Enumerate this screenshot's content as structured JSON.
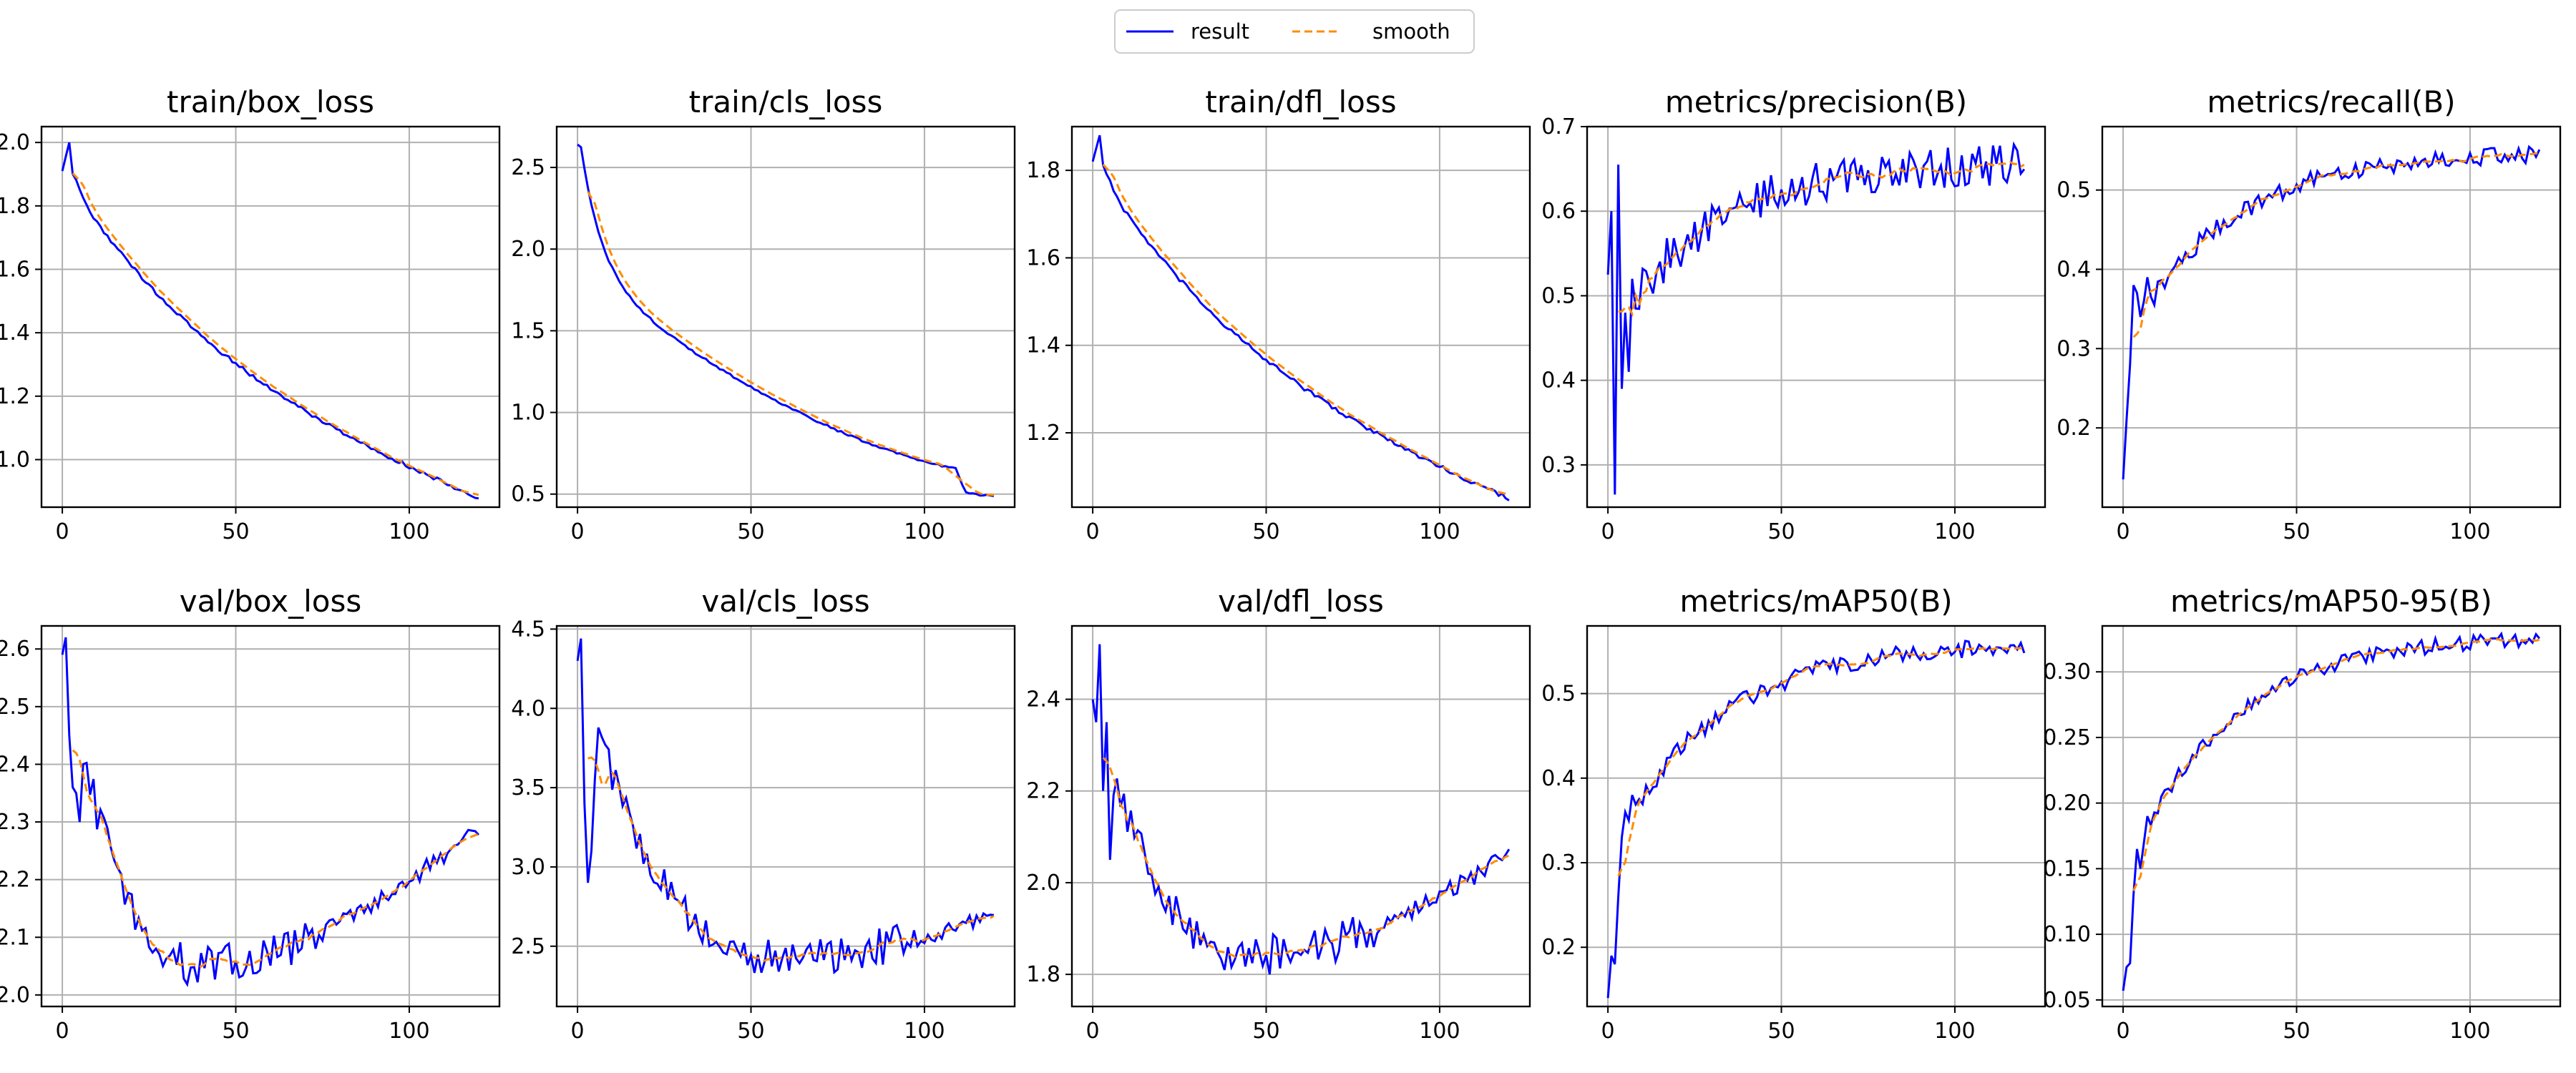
{
  "legend": {
    "entries": [
      {
        "label": "result",
        "color": "#0000ff",
        "dash": false
      },
      {
        "label": "smooth",
        "color": "#ff8c00",
        "dash": true
      }
    ],
    "placement": "top-center"
  },
  "grid": true,
  "chart_data": [
    {
      "type": "line",
      "title": "train/box_loss",
      "xlim": [
        -6,
        126
      ],
      "ylim": [
        0.85,
        2.05
      ],
      "xticks": [
        0,
        50,
        100
      ],
      "yticks": [
        1.0,
        1.2,
        1.4,
        1.6,
        1.8,
        2.0
      ],
      "ytick_decimals": 1,
      "kind": "decay",
      "y_start": 1.91,
      "y_end": 0.88,
      "peak": 2.0,
      "peak_at": 2,
      "noise": 0.006,
      "last_drop": 0,
      "knee": 0,
      "smooth_offset": 0.025
    },
    {
      "type": "line",
      "title": "train/cls_loss",
      "xlim": [
        -6,
        126
      ],
      "ylim": [
        0.42,
        2.75
      ],
      "xticks": [
        0,
        50,
        100
      ],
      "yticks": [
        0.5,
        1.0,
        1.5,
        2.0,
        2.5
      ],
      "ytick_decimals": 1,
      "kind": "decay",
      "y_start": 2.64,
      "y_end": 0.63,
      "peak": 2.64,
      "peak_at": 0,
      "noise": 0.006,
      "last_drop": 0.14,
      "knee": 1,
      "smooth_offset": 0.05
    },
    {
      "type": "line",
      "title": "train/dfl_loss",
      "xlim": [
        -6,
        126
      ],
      "ylim": [
        1.03,
        1.9
      ],
      "xticks": [
        0,
        50,
        100
      ],
      "yticks": [
        1.2,
        1.4,
        1.6,
        1.8
      ],
      "ytick_decimals": 1,
      "kind": "decay",
      "y_start": 1.82,
      "y_end": 1.05,
      "peak": 1.88,
      "peak_at": 2,
      "noise": 0.005,
      "last_drop": 0,
      "knee": 0,
      "smooth_offset": 0.02
    },
    {
      "type": "line",
      "title": "metrics/precision(B)",
      "xlim": [
        -6,
        126
      ],
      "ylim": [
        0.25,
        0.7
      ],
      "xticks": [
        0,
        50,
        100
      ],
      "yticks": [
        0.3,
        0.4,
        0.5,
        0.6,
        0.7
      ],
      "ytick_decimals": 1,
      "kind": "rise",
      "y_start": 0.45,
      "y_end": 0.655,
      "noise": 0.025,
      "early": [
        0.525,
        0.6,
        0.265,
        0.655,
        0.39,
        0.48,
        0.41,
        0.52
      ]
    },
    {
      "type": "line",
      "title": "metrics/recall(B)",
      "xlim": [
        -6,
        126
      ],
      "ylim": [
        0.1,
        0.58
      ],
      "xticks": [
        0,
        50,
        100
      ],
      "yticks": [
        0.2,
        0.3,
        0.4,
        0.5
      ],
      "ytick_decimals": 1,
      "kind": "rise",
      "y_start": 0.3,
      "y_end": 0.545,
      "noise": 0.012,
      "early": [
        0.135,
        0.21,
        0.28,
        0.38,
        0.37,
        0.34,
        0.36,
        0.39
      ]
    },
    {
      "type": "line",
      "title": "val/box_loss",
      "xlim": [
        -6,
        126
      ],
      "ylim": [
        1.98,
        2.64
      ],
      "xticks": [
        0,
        50,
        100
      ],
      "yticks": [
        2.0,
        2.1,
        2.2,
        2.3,
        2.4,
        2.5,
        2.6
      ],
      "ytick_decimals": 1,
      "kind": "ubowl",
      "y_start": 2.6,
      "y_min": 2.05,
      "min_at": 42,
      "y_end": 2.29,
      "noise": 0.035,
      "early": [
        2.59,
        2.62,
        2.45,
        2.36,
        2.35,
        2.3
      ]
    },
    {
      "type": "line",
      "title": "val/cls_loss",
      "xlim": [
        -6,
        126
      ],
      "ylim": [
        2.12,
        4.52
      ],
      "xticks": [
        0,
        50,
        100
      ],
      "yticks": [
        2.5,
        3.0,
        3.5,
        4.0,
        4.5
      ],
      "ytick_decimals": 1,
      "kind": "ubowl",
      "y_start": 4.3,
      "y_min": 2.42,
      "min_at": 60,
      "y_end": 2.7,
      "noise": 0.12,
      "early": [
        4.3,
        4.44,
        3.4,
        2.9,
        3.1,
        3.55
      ]
    },
    {
      "type": "line",
      "title": "val/dfl_loss",
      "xlim": [
        -6,
        126
      ],
      "ylim": [
        1.73,
        2.56
      ],
      "xticks": [
        0,
        50,
        100
      ],
      "yticks": [
        1.8,
        2.0,
        2.2,
        2.4
      ],
      "ytick_decimals": 1,
      "kind": "ubowl",
      "y_start": 2.4,
      "y_min": 1.84,
      "min_at": 48,
      "y_end": 2.06,
      "noise": 0.045,
      "early": [
        2.4,
        2.35,
        2.52,
        2.2,
        2.35,
        2.05
      ]
    },
    {
      "type": "line",
      "title": "metrics/mAP50(B)",
      "xlim": [
        -6,
        126
      ],
      "ylim": [
        0.13,
        0.58
      ],
      "xticks": [
        0,
        50,
        100
      ],
      "yticks": [
        0.2,
        0.3,
        0.4,
        0.5
      ],
      "ytick_decimals": 1,
      "kind": "rise",
      "y_start": 0.3,
      "y_end": 0.555,
      "noise": 0.011,
      "early": [
        0.14,
        0.19,
        0.18,
        0.26,
        0.33,
        0.36,
        0.35,
        0.38
      ]
    },
    {
      "type": "line",
      "title": "metrics/mAP50-95(B)",
      "xlim": [
        -6,
        126
      ],
      "ylim": [
        0.045,
        0.335
      ],
      "xticks": [
        0,
        50,
        100
      ],
      "yticks": [
        0.05,
        0.1,
        0.15,
        0.2,
        0.25,
        0.3
      ],
      "ytick_decimals": 2,
      "kind": "rise",
      "y_start": 0.14,
      "y_end": 0.325,
      "noise": 0.006,
      "early": [
        0.057,
        0.075,
        0.078,
        0.13,
        0.165,
        0.15,
        0.17,
        0.19
      ]
    }
  ]
}
